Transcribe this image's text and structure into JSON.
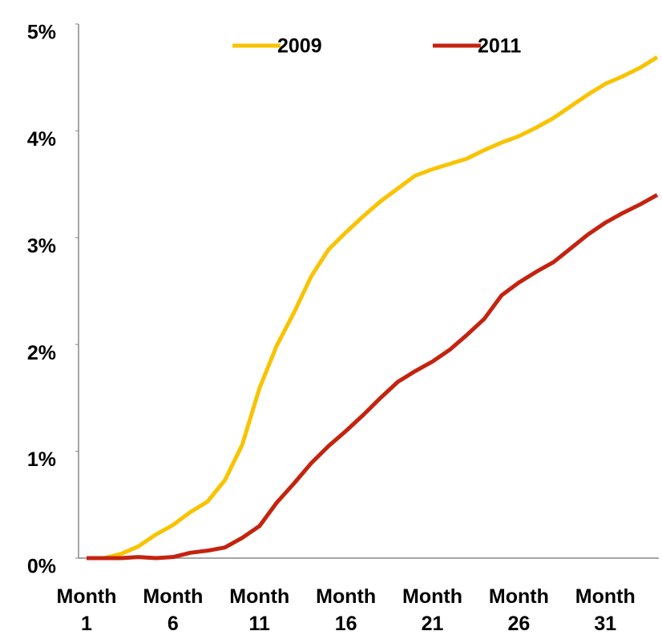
{
  "chart_data": {
    "type": "line",
    "categories": [
      "Month 1",
      null,
      null,
      null,
      null,
      "Month 6",
      null,
      null,
      null,
      null,
      "Month 11",
      null,
      null,
      null,
      null,
      "Month 16",
      null,
      null,
      null,
      null,
      "Month 21",
      null,
      null,
      null,
      null,
      "Month 26",
      null,
      null,
      null,
      null,
      "Month 31",
      null,
      null,
      null
    ],
    "series": [
      {
        "name": "2009",
        "color": "#f9c300",
        "values": [
          0,
          0,
          0.04,
          0.11,
          0.22,
          0.31,
          0.43,
          0.53,
          0.73,
          1.06,
          1.59,
          1.99,
          2.3,
          2.64,
          2.89,
          3.05,
          3.2,
          3.34,
          3.46,
          3.58,
          3.64,
          3.69,
          3.74,
          3.82,
          3.89,
          3.95,
          4.03,
          4.12,
          4.23,
          4.34,
          4.44,
          4.51,
          4.59,
          4.69
        ]
      },
      {
        "name": "2011",
        "color": "#c4230f",
        "values": [
          0,
          0,
          0,
          0.01,
          0,
          0.01,
          0.05,
          0.07,
          0.1,
          0.19,
          0.3,
          0.52,
          0.7,
          0.89,
          1.05,
          1.19,
          1.34,
          1.5,
          1.65,
          1.75,
          1.84,
          1.95,
          2.09,
          2.24,
          2.46,
          2.58,
          2.68,
          2.77,
          2.9,
          3.03,
          3.14,
          3.23,
          3.31,
          3.4
        ]
      }
    ],
    "ylim": [
      0,
      5
    ],
    "yticks": [
      {
        "value": 0,
        "label": "0%"
      },
      {
        "value": 1,
        "label": "1%"
      },
      {
        "value": 2,
        "label": "2%"
      },
      {
        "value": 3,
        "label": "3%"
      },
      {
        "value": 4,
        "label": "4%"
      },
      {
        "value": 5,
        "label": "5%"
      }
    ],
    "grid": false,
    "legend": "top"
  }
}
